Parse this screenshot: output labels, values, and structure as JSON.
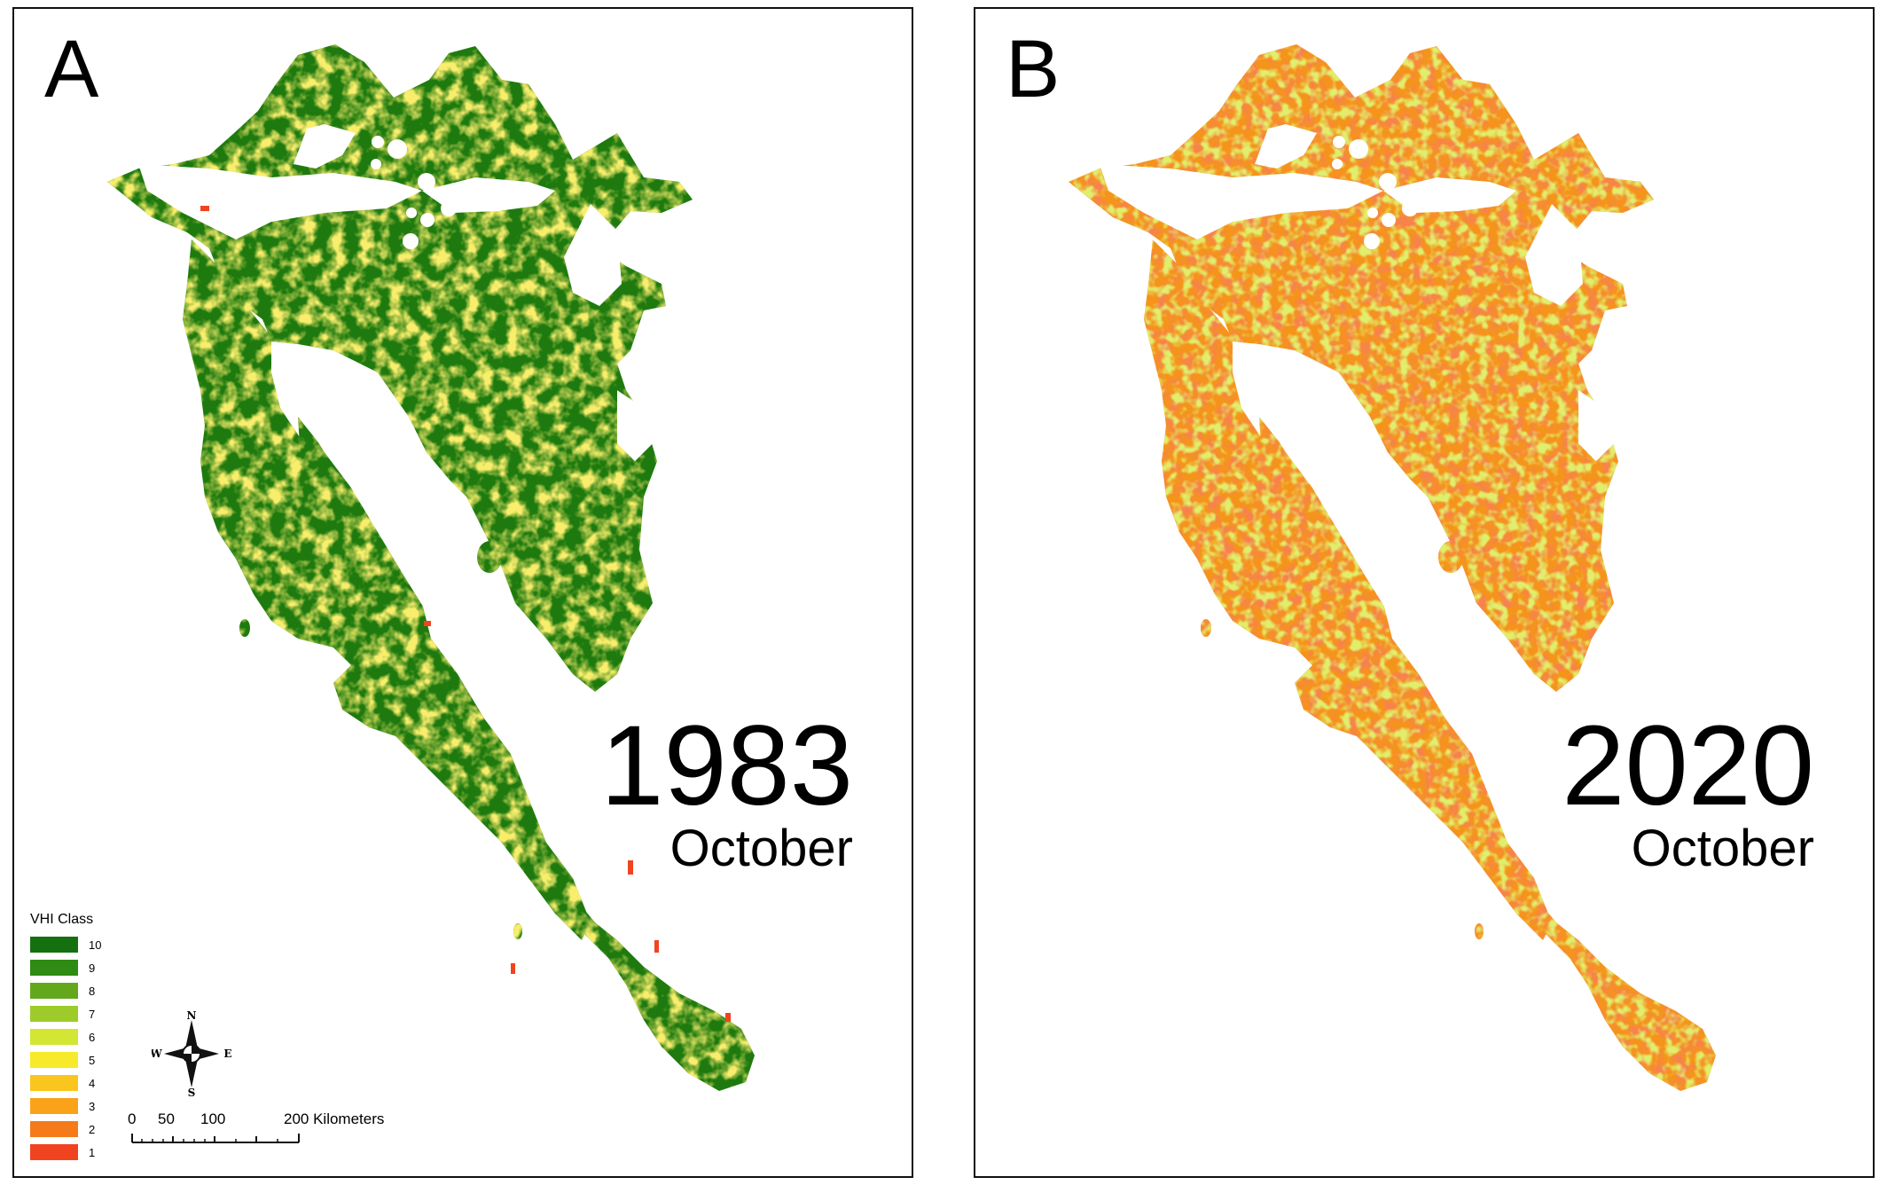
{
  "panels": [
    {
      "letter": "A",
      "year": "1983",
      "month": "October",
      "dominant_colors": [
        "#1e7a0e",
        "#2f8b13",
        "#9dcc2a"
      ]
    },
    {
      "letter": "B",
      "year": "2020",
      "month": "October",
      "dominant_colors": [
        "#f39a1a",
        "#ef5512",
        "#fbcf1c"
      ]
    }
  ],
  "legend": {
    "title": "VHI Class",
    "classes": [
      {
        "label": "10",
        "color": "#157010"
      },
      {
        "label": "9",
        "color": "#2f8b13"
      },
      {
        "label": "8",
        "color": "#63a81c"
      },
      {
        "label": "7",
        "color": "#9dcc2a"
      },
      {
        "label": "6",
        "color": "#d3e634"
      },
      {
        "label": "5",
        "color": "#f6ea2b"
      },
      {
        "label": "4",
        "color": "#fbc51f"
      },
      {
        "label": "3",
        "color": "#f9a21a"
      },
      {
        "label": "2",
        "color": "#f57a1a"
      },
      {
        "label": "1",
        "color": "#f04420"
      }
    ]
  },
  "compass": {
    "n": "N",
    "s": "S",
    "e": "E",
    "w": "W"
  },
  "scale": {
    "ticks": [
      "0",
      "50",
      "100"
    ],
    "end_label": "200 Kilometers"
  }
}
